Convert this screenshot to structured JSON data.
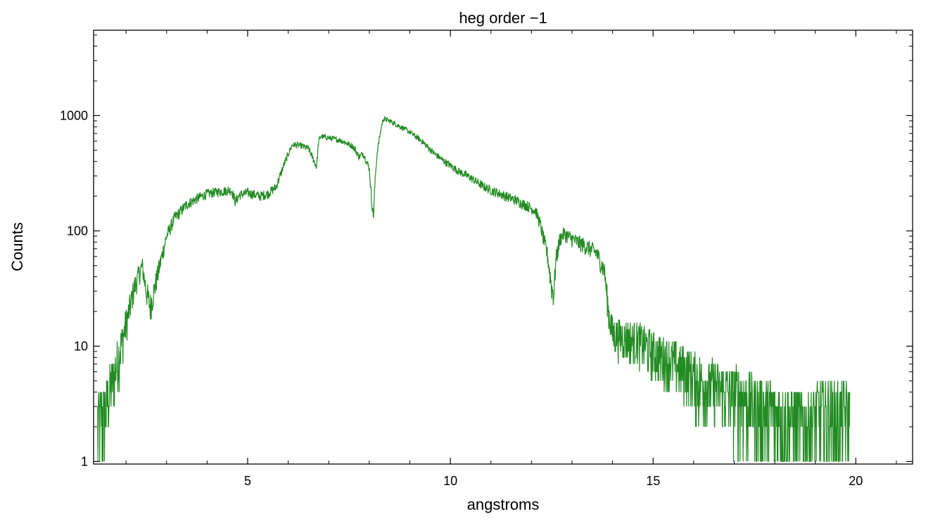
{
  "chart_data": {
    "type": "line",
    "title": "heg order −1",
    "xlabel": "angstroms",
    "ylabel": "Counts",
    "xlim": [
      1.2,
      21.4
    ],
    "ylim": [
      0.95,
      5500
    ],
    "y_scale": "log",
    "grid": false,
    "x_ticks": [
      5,
      10,
      15,
      20
    ],
    "x_tick_labels": [
      "5",
      "10",
      "15",
      "20"
    ],
    "y_ticks": [
      1,
      10,
      100,
      1000
    ],
    "y_tick_labels": [
      "1",
      "10",
      "100",
      "1000"
    ],
    "series": [
      {
        "color": "#228b22",
        "x": [
          1.3,
          1.5,
          1.7,
          1.9,
          2.1,
          2.2,
          2.3,
          2.4,
          2.5,
          2.6,
          2.8,
          3.0,
          3.2,
          3.5,
          3.8,
          4.0,
          4.3,
          4.6,
          4.7,
          4.8,
          5.0,
          5.3,
          5.5,
          5.7,
          5.9,
          6.1,
          6.3,
          6.5,
          6.7,
          6.75,
          6.8,
          7.0,
          7.3,
          7.6,
          7.75,
          7.85,
          8.0,
          8.05,
          8.1,
          8.15,
          8.2,
          8.3,
          8.35,
          8.5,
          8.8,
          9.0,
          9.3,
          9.6,
          9.9,
          10.2,
          10.5,
          10.8,
          11.0,
          11.3,
          11.6,
          11.9,
          12.1,
          12.2,
          12.4,
          12.5,
          12.55,
          12.6,
          12.7,
          12.8,
          13.0,
          13.3,
          13.6,
          13.8,
          13.9,
          14.0,
          14.3,
          14.7,
          15.0,
          15.3,
          15.6,
          15.9,
          16.2,
          16.5,
          16.8,
          17.0,
          17.3,
          17.6,
          17.9,
          18.2,
          18.5,
          18.8,
          19.1,
          19.4,
          19.7,
          19.85
        ],
        "y": [
          2.0,
          3.0,
          5.5,
          11.0,
          22.0,
          32.0,
          40.0,
          50.0,
          30.0,
          22.0,
          45.0,
          90.0,
          130.0,
          170.0,
          195.0,
          210.0,
          220.0,
          225.0,
          180.0,
          205.0,
          215.0,
          200.0,
          210.0,
          240.0,
          380.0,
          560.0,
          550.0,
          520.0,
          360.0,
          600.0,
          660.0,
          640.0,
          610.0,
          540.0,
          440.0,
          470.0,
          350.0,
          200.0,
          130.0,
          300.0,
          500.0,
          810.0,
          940.0,
          900.0,
          790.0,
          720.0,
          600.0,
          470.0,
          390.0,
          330.0,
          290.0,
          245.0,
          225.0,
          205.0,
          185.0,
          165.0,
          150.0,
          120.0,
          60.0,
          32.0,
          28.0,
          55.0,
          85.0,
          95.0,
          85.0,
          75.0,
          65.0,
          45.0,
          20.0,
          13.0,
          12.0,
          11.0,
          9.0,
          8.0,
          7.0,
          6.0,
          5.0,
          4.5,
          4.0,
          4.0,
          3.5,
          3.0,
          2.7,
          2.5,
          2.3,
          2.2,
          2.6,
          2.6,
          2.6,
          2.6
        ]
      }
    ]
  }
}
